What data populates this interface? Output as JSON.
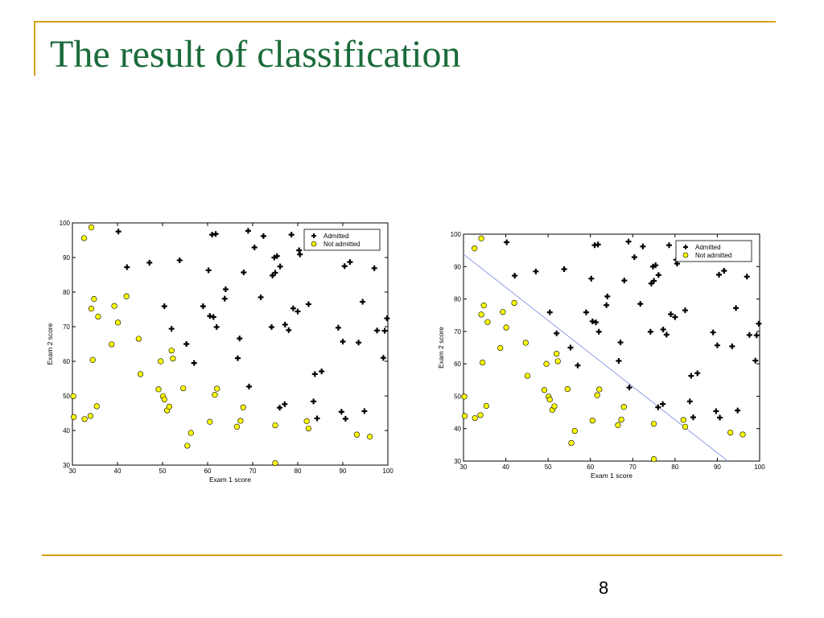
{
  "slide": {
    "title": "The result of classification",
    "page_number": "8",
    "accent_color": "#d4a017",
    "title_color": "#1a6b3a"
  },
  "chart_data": [
    {
      "type": "scatter",
      "title": "",
      "xlabel": "Exam 1 score",
      "ylabel": "Exam 2 score",
      "xlim": [
        30,
        100
      ],
      "ylim": [
        30,
        100
      ],
      "xticks": [
        30,
        40,
        50,
        60,
        70,
        80,
        90,
        100
      ],
      "yticks": [
        30,
        40,
        50,
        60,
        70,
        80,
        90,
        100
      ],
      "grid": false,
      "legend_position": "top-right",
      "series": [
        {
          "name": "Admitted",
          "marker": "plus",
          "color": "#000000",
          "points": [
            [
              40.2,
              97.5
            ],
            [
              42.1,
              87.2
            ],
            [
              47.1,
              88.5
            ],
            [
              50.4,
              75.9
            ],
            [
              52.0,
              69.4
            ],
            [
              53.8,
              89.2
            ],
            [
              55.3,
              65.0
            ],
            [
              57.0,
              59.5
            ],
            [
              59.0,
              75.9
            ],
            [
              60.2,
              86.3
            ],
            [
              60.5,
              73.1
            ],
            [
              61.0,
              96.6
            ],
            [
              61.8,
              96.8
            ],
            [
              61.3,
              72.8
            ],
            [
              62.0,
              69.9
            ],
            [
              63.8,
              78.1
            ],
            [
              64.0,
              80.8
            ],
            [
              66.7,
              60.9
            ],
            [
              67.1,
              66.6
            ],
            [
              68.0,
              85.7
            ],
            [
              69.0,
              97.7
            ],
            [
              69.2,
              52.7
            ],
            [
              70.4,
              92.9
            ],
            [
              71.8,
              78.5
            ],
            [
              72.4,
              96.2
            ],
            [
              74.2,
              69.9
            ],
            [
              74.4,
              84.8
            ],
            [
              74.8,
              90.0
            ],
            [
              75.0,
              85.6
            ],
            [
              75.4,
              90.4
            ],
            [
              76.1,
              87.4
            ],
            [
              76.0,
              46.6
            ],
            [
              77.1,
              47.6
            ],
            [
              77.2,
              70.6
            ],
            [
              78.0,
              69.0
            ],
            [
              78.6,
              96.6
            ],
            [
              79.0,
              75.3
            ],
            [
              80.0,
              74.4
            ],
            [
              80.3,
              92.1
            ],
            [
              80.5,
              90.9
            ],
            [
              82.4,
              76.5
            ],
            [
              83.5,
              48.4
            ],
            [
              83.8,
              56.3
            ],
            [
              85.3,
              57.1
            ],
            [
              84.3,
              43.5
            ],
            [
              89.0,
              69.7
            ],
            [
              89.7,
              45.4
            ],
            [
              90.0,
              65.7
            ],
            [
              90.4,
              87.5
            ],
            [
              90.6,
              43.4
            ],
            [
              91.6,
              88.7
            ],
            [
              93.5,
              65.4
            ],
            [
              94.4,
              77.2
            ],
            [
              94.8,
              45.6
            ],
            [
              97.0,
              86.9
            ],
            [
              97.6,
              68.9
            ],
            [
              99.3,
              68.8
            ],
            [
              99.0,
              61.0
            ],
            [
              99.8,
              72.4
            ]
          ]
        },
        {
          "name": "Not admitted",
          "marker": "circle",
          "color": "#ffff00",
          "points": [
            [
              30.2,
              49.9
            ],
            [
              30.3,
              43.9
            ],
            [
              32.6,
              95.6
            ],
            [
              32.7,
              43.3
            ],
            [
              34.0,
              44.2
            ],
            [
              34.2,
              98.7
            ],
            [
              34.5,
              60.4
            ],
            [
              34.2,
              75.2
            ],
            [
              34.8,
              78.0
            ],
            [
              35.4,
              47.0
            ],
            [
              35.7,
              72.9
            ],
            [
              38.7,
              64.9
            ],
            [
              39.3,
              76.0
            ],
            [
              40.1,
              71.2
            ],
            [
              42.0,
              78.8
            ],
            [
              44.7,
              66.5
            ],
            [
              45.1,
              56.3
            ],
            [
              49.1,
              51.9
            ],
            [
              49.6,
              60.0
            ],
            [
              50.1,
              49.9
            ],
            [
              50.4,
              49.0
            ],
            [
              51.0,
              45.8
            ],
            [
              51.5,
              46.9
            ],
            [
              52.0,
              63.1
            ],
            [
              52.3,
              60.8
            ],
            [
              54.6,
              52.2
            ],
            [
              55.5,
              35.6
            ],
            [
              56.3,
              39.3
            ],
            [
              60.5,
              42.5
            ],
            [
              61.6,
              50.3
            ],
            [
              62.1,
              52.1
            ],
            [
              66.5,
              41.1
            ],
            [
              67.3,
              42.8
            ],
            [
              67.9,
              46.7
            ],
            [
              75.0,
              30.6
            ],
            [
              75.0,
              41.5
            ],
            [
              82.0,
              42.7
            ],
            [
              82.4,
              40.6
            ],
            [
              93.1,
              38.8
            ],
            [
              96.0,
              38.2
            ]
          ]
        }
      ]
    },
    {
      "type": "scatter",
      "title": "",
      "xlabel": "Exam 1 score",
      "ylabel": "Exam 2 score",
      "xlim": [
        30,
        100
      ],
      "ylim": [
        30,
        100
      ],
      "xticks": [
        30,
        40,
        50,
        60,
        70,
        80,
        90,
        100
      ],
      "yticks": [
        30,
        40,
        50,
        60,
        70,
        80,
        90,
        100
      ],
      "grid": false,
      "legend_position": "top-right",
      "decision_boundary": {
        "color": "#8f9ee8",
        "points": [
          [
            30,
            93.8
          ],
          [
            92.5,
            30
          ]
        ]
      },
      "series": [
        {
          "name": "Admitted",
          "marker": "plus",
          "color": "#000000",
          "points": [
            [
              40.2,
              97.5
            ],
            [
              42.1,
              87.2
            ],
            [
              47.1,
              88.5
            ],
            [
              50.4,
              75.9
            ],
            [
              52.0,
              69.4
            ],
            [
              53.8,
              89.2
            ],
            [
              55.3,
              65.0
            ],
            [
              57.0,
              59.5
            ],
            [
              59.0,
              75.9
            ],
            [
              60.2,
              86.3
            ],
            [
              60.5,
              73.1
            ],
            [
              61.0,
              96.6
            ],
            [
              61.8,
              96.8
            ],
            [
              61.3,
              72.8
            ],
            [
              62.0,
              69.9
            ],
            [
              63.8,
              78.1
            ],
            [
              64.0,
              80.8
            ],
            [
              66.7,
              60.9
            ],
            [
              67.1,
              66.6
            ],
            [
              68.0,
              85.7
            ],
            [
              69.0,
              97.7
            ],
            [
              69.2,
              52.7
            ],
            [
              70.4,
              92.9
            ],
            [
              71.8,
              78.5
            ],
            [
              72.4,
              96.2
            ],
            [
              74.2,
              69.9
            ],
            [
              74.4,
              84.8
            ],
            [
              74.8,
              90.0
            ],
            [
              75.0,
              85.6
            ],
            [
              75.4,
              90.4
            ],
            [
              76.1,
              87.4
            ],
            [
              76.0,
              46.6
            ],
            [
              77.1,
              47.6
            ],
            [
              77.2,
              70.6
            ],
            [
              78.0,
              69.0
            ],
            [
              78.6,
              96.6
            ],
            [
              79.0,
              75.3
            ],
            [
              80.0,
              74.4
            ],
            [
              80.3,
              92.1
            ],
            [
              80.5,
              90.9
            ],
            [
              82.4,
              76.5
            ],
            [
              83.5,
              48.4
            ],
            [
              83.8,
              56.3
            ],
            [
              85.3,
              57.1
            ],
            [
              84.3,
              43.5
            ],
            [
              89.0,
              69.7
            ],
            [
              89.7,
              45.4
            ],
            [
              90.0,
              65.7
            ],
            [
              90.4,
              87.5
            ],
            [
              90.6,
              43.4
            ],
            [
              91.6,
              88.7
            ],
            [
              93.5,
              65.4
            ],
            [
              94.4,
              77.2
            ],
            [
              94.8,
              45.6
            ],
            [
              97.0,
              86.9
            ],
            [
              97.6,
              68.9
            ],
            [
              99.3,
              68.8
            ],
            [
              99.0,
              61.0
            ],
            [
              99.8,
              72.4
            ]
          ]
        },
        {
          "name": "Not admitted",
          "marker": "circle",
          "color": "#ffff00",
          "points": [
            [
              30.2,
              49.9
            ],
            [
              30.3,
              43.9
            ],
            [
              32.6,
              95.6
            ],
            [
              32.7,
              43.3
            ],
            [
              34.0,
              44.2
            ],
            [
              34.2,
              98.7
            ],
            [
              34.5,
              60.4
            ],
            [
              34.2,
              75.2
            ],
            [
              34.8,
              78.0
            ],
            [
              35.4,
              47.0
            ],
            [
              35.7,
              72.9
            ],
            [
              38.7,
              64.9
            ],
            [
              39.3,
              76.0
            ],
            [
              40.1,
              71.2
            ],
            [
              42.0,
              78.8
            ],
            [
              44.7,
              66.5
            ],
            [
              45.1,
              56.3
            ],
            [
              49.1,
              51.9
            ],
            [
              49.6,
              60.0
            ],
            [
              50.1,
              49.9
            ],
            [
              50.4,
              49.0
            ],
            [
              51.0,
              45.8
            ],
            [
              51.5,
              46.9
            ],
            [
              52.0,
              63.1
            ],
            [
              52.3,
              60.8
            ],
            [
              54.6,
              52.2
            ],
            [
              55.5,
              35.6
            ],
            [
              56.3,
              39.3
            ],
            [
              60.5,
              42.5
            ],
            [
              61.6,
              50.3
            ],
            [
              62.1,
              52.1
            ],
            [
              66.5,
              41.1
            ],
            [
              67.3,
              42.8
            ],
            [
              67.9,
              46.7
            ],
            [
              75.0,
              30.6
            ],
            [
              75.0,
              41.5
            ],
            [
              82.0,
              42.7
            ],
            [
              82.4,
              40.6
            ],
            [
              93.1,
              38.8
            ],
            [
              96.0,
              38.2
            ]
          ]
        }
      ]
    }
  ]
}
